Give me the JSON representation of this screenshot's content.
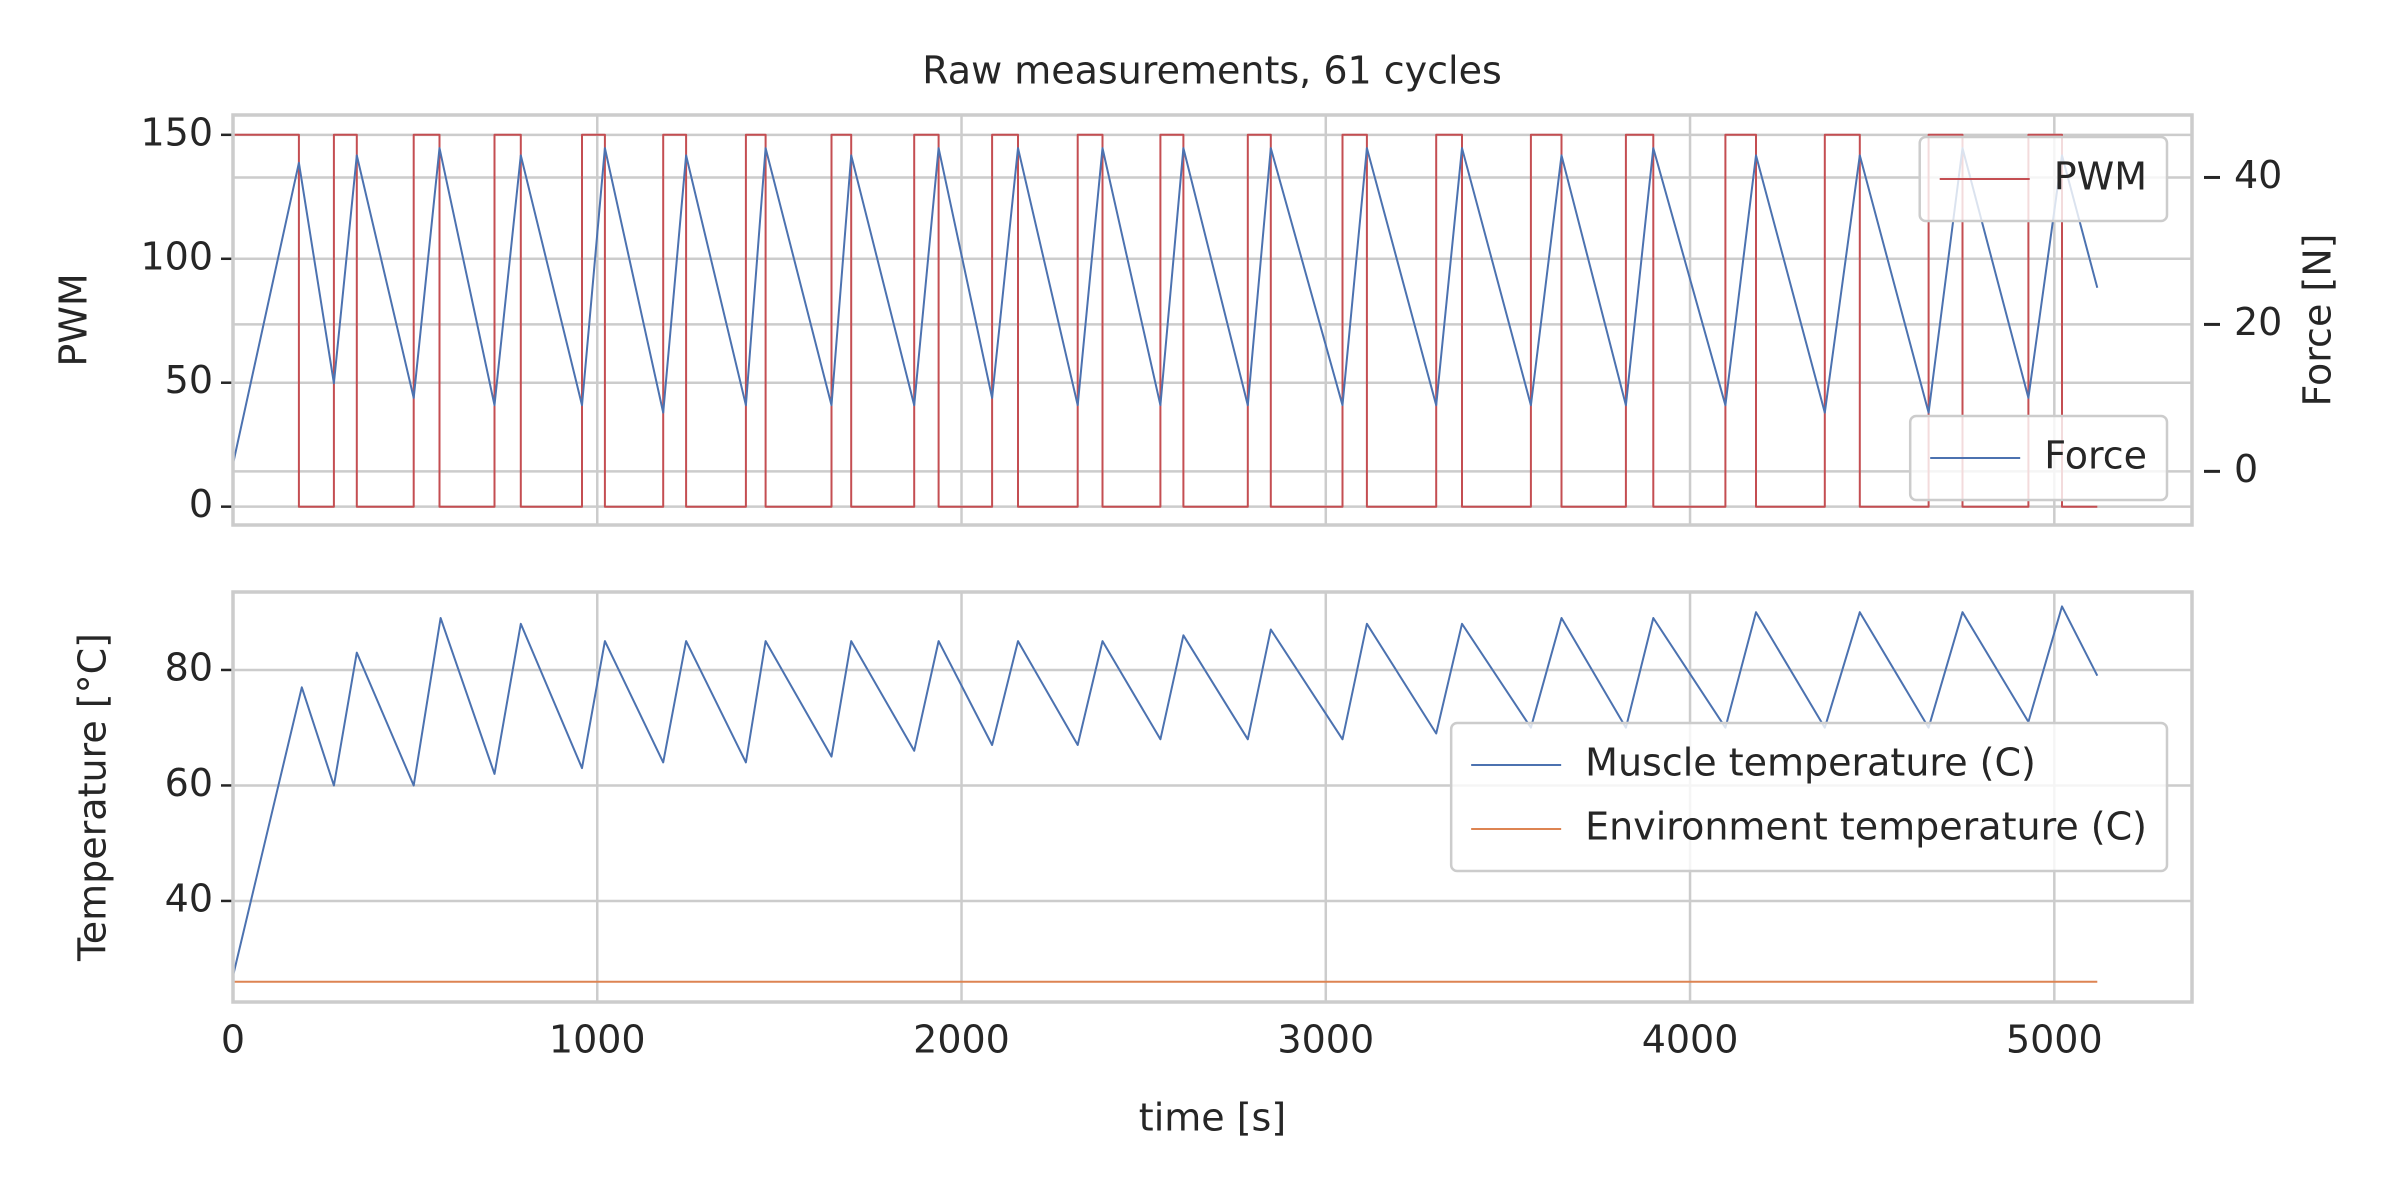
{
  "chart_data": [
    {
      "type": "line",
      "title": "Raw measurements, 61 cycles",
      "ylabel": "PWM",
      "y2label": "Force [N]",
      "ylim": [
        -7.4,
        158
      ],
      "yticks": [
        0,
        50,
        100,
        150
      ],
      "y2lim": [
        -7.3,
        48.5
      ],
      "y2ticks": [
        0,
        20,
        40
      ],
      "grid": true,
      "legend": "upper right",
      "legend2": "lower right",
      "series": [
        {
          "name": "PWM",
          "color": "#c44e52",
          "x": [
            0,
            181,
            181,
            277,
            277,
            340,
            340,
            496,
            496,
            567,
            567,
            718,
            718,
            790,
            790,
            958,
            958,
            1021,
            1021,
            1181,
            1181,
            1244,
            1244,
            1408,
            1408,
            1462,
            1462,
            1643,
            1643,
            1697,
            1697,
            1870,
            1870,
            1937,
            1937,
            2084,
            2084,
            2155,
            2155,
            2319,
            2319,
            2387,
            2387,
            2546,
            2546,
            2609,
            2609,
            2786,
            2786,
            2849,
            2849,
            3046,
            3046,
            3113,
            3113,
            3303,
            3303,
            3374,
            3374,
            3563,
            3563,
            3647,
            3647,
            3824,
            3824,
            3899,
            3899,
            4097,
            4097,
            4181,
            4181,
            4370,
            4370,
            4466,
            4466,
            4655,
            4655,
            4748,
            4748,
            4929,
            4929,
            5021,
            5021,
            5118
          ],
          "values": [
            150,
            150,
            0,
            0,
            150,
            150,
            0,
            0,
            150,
            150,
            0,
            0,
            150,
            150,
            0,
            0,
            150,
            150,
            0,
            0,
            150,
            150,
            0,
            0,
            150,
            150,
            0,
            0,
            150,
            150,
            0,
            0,
            150,
            150,
            0,
            0,
            150,
            150,
            0,
            0,
            150,
            150,
            0,
            0,
            150,
            150,
            0,
            0,
            150,
            150,
            0,
            0,
            150,
            150,
            0,
            0,
            150,
            150,
            0,
            0,
            150,
            150,
            0,
            0,
            150,
            150,
            0,
            0,
            150,
            150,
            0,
            0,
            150,
            150,
            0,
            0,
            150,
            150,
            0,
            0,
            150,
            150,
            0,
            0
          ]
        },
        {
          "name": "Force",
          "color": "#4c72b0",
          "axis": "y2",
          "x": [
            0,
            181,
            277,
            340,
            496,
            567,
            718,
            790,
            958,
            1021,
            1181,
            1244,
            1408,
            1462,
            1643,
            1697,
            1870,
            1937,
            2084,
            2155,
            2319,
            2387,
            2546,
            2609,
            2786,
            2849,
            3046,
            3113,
            3303,
            3374,
            3563,
            3647,
            3824,
            3899,
            4097,
            4181,
            4370,
            4466,
            4655,
            4748,
            4929,
            5021,
            5118
          ],
          "values": [
            1,
            42,
            12,
            43,
            10,
            44,
            9,
            43,
            9,
            44,
            8,
            43,
            9,
            44,
            9,
            43,
            9,
            44,
            10,
            44,
            9,
            44,
            9,
            44,
            9,
            44,
            9,
            44,
            9,
            44,
            9,
            43,
            9,
            44,
            9,
            43,
            8,
            43,
            8,
            44,
            10,
            43,
            25
          ]
        }
      ]
    },
    {
      "type": "line",
      "ylabel": "Temperature [°C]",
      "xlabel": "time [s]",
      "xlim": [
        0,
        5378
      ],
      "xticks": [
        0,
        1000,
        2000,
        3000,
        4000,
        5000
      ],
      "ylim": [
        22.5,
        93.5
      ],
      "yticks": [
        40,
        60,
        80
      ],
      "grid": true,
      "legend": "center right",
      "series": [
        {
          "name": "Muscle temperature (C)",
          "color": "#4c72b0",
          "x": [
            0,
            189,
            277,
            340,
            496,
            570,
            718,
            790,
            958,
            1021,
            1181,
            1244,
            1408,
            1462,
            1643,
            1697,
            1870,
            1937,
            2084,
            2155,
            2319,
            2387,
            2546,
            2609,
            2786,
            2849,
            3046,
            3113,
            3303,
            3374,
            3563,
            3647,
            3824,
            3899,
            4097,
            4181,
            4370,
            4466,
            4655,
            4748,
            4929,
            5021,
            5118
          ],
          "values": [
            27,
            77,
            60,
            83,
            60,
            89,
            62,
            88,
            63,
            85,
            64,
            85,
            64,
            85,
            65,
            85,
            66,
            85,
            67,
            85,
            67,
            85,
            68,
            86,
            68,
            87,
            68,
            88,
            69,
            88,
            70,
            89,
            70,
            89,
            70,
            90,
            70,
            90,
            70,
            90,
            71,
            91,
            79
          ]
        },
        {
          "name": "Environment temperature (C)",
          "color": "#dd8452",
          "x": [
            0,
            1000,
            2000,
            3000,
            4000,
            5118
          ],
          "values": [
            26,
            26,
            26,
            26,
            26,
            26
          ]
        }
      ]
    }
  ]
}
